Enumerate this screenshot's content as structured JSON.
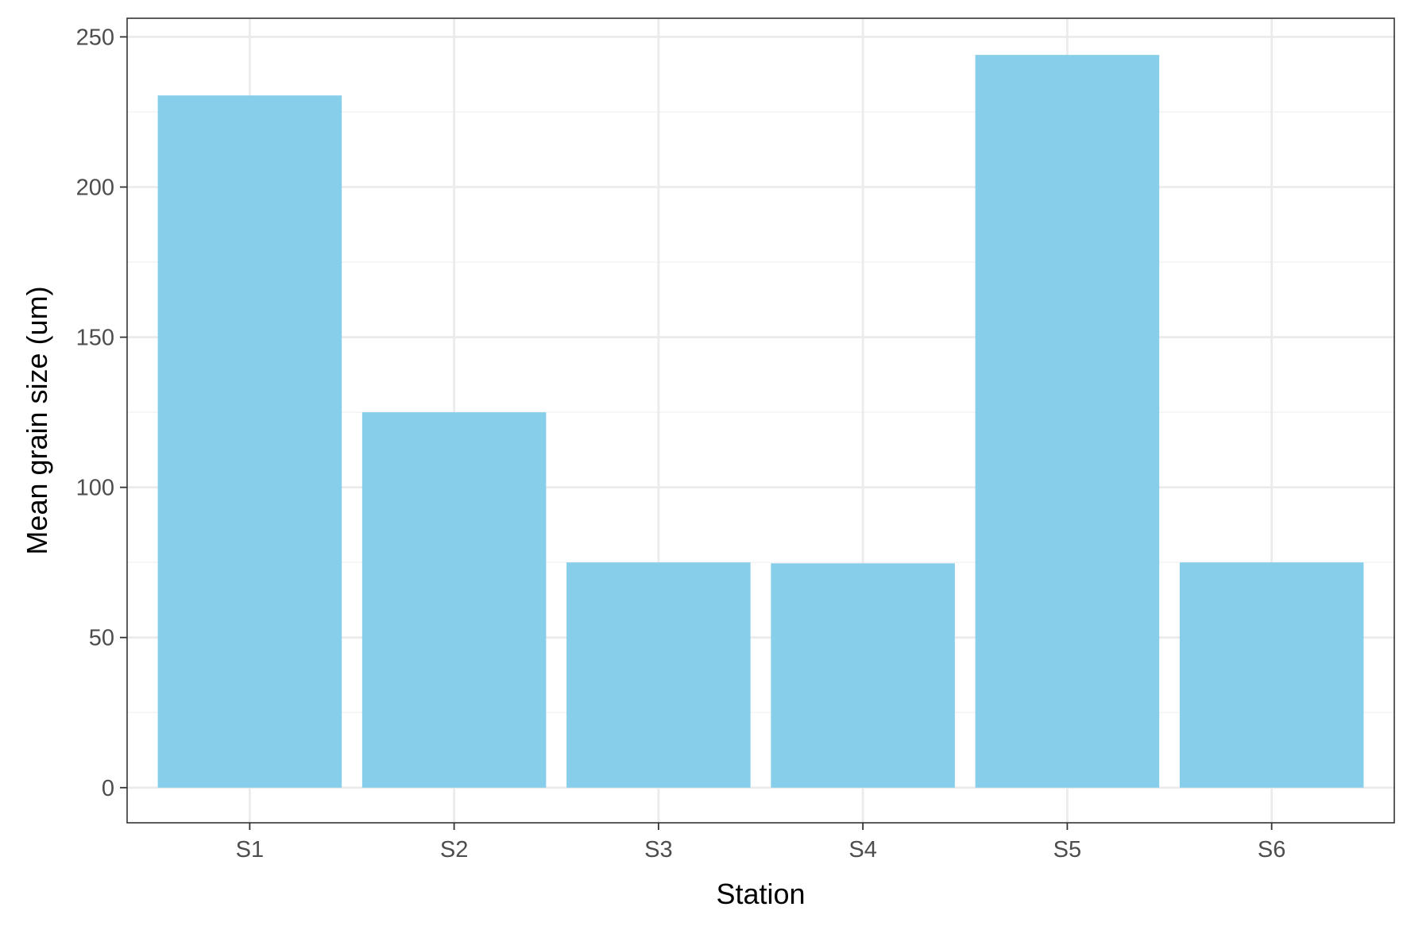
{
  "chart_data": {
    "type": "bar",
    "title": "",
    "xlabel": "Station",
    "ylabel": "Mean grain size (um)",
    "categories": [
      "S1",
      "S2",
      "S3",
      "S4",
      "S5",
      "S6"
    ],
    "values": [
      230.5,
      125,
      75,
      74.7,
      244,
      75
    ],
    "ylim": [
      -11.7,
      256.2
    ],
    "yticks": [
      0,
      50,
      100,
      150,
      200,
      250
    ],
    "ytick_labels": [
      "0",
      "50",
      "100",
      "150",
      "200",
      "250"
    ],
    "grid": true,
    "legend": "none",
    "colors": {
      "bar": "#87ceeb",
      "grid_major": "#ebebeb",
      "grid_minor": "#f2f2f2",
      "panel_border": "#333333",
      "tick_label": "#4d4d4d"
    }
  }
}
